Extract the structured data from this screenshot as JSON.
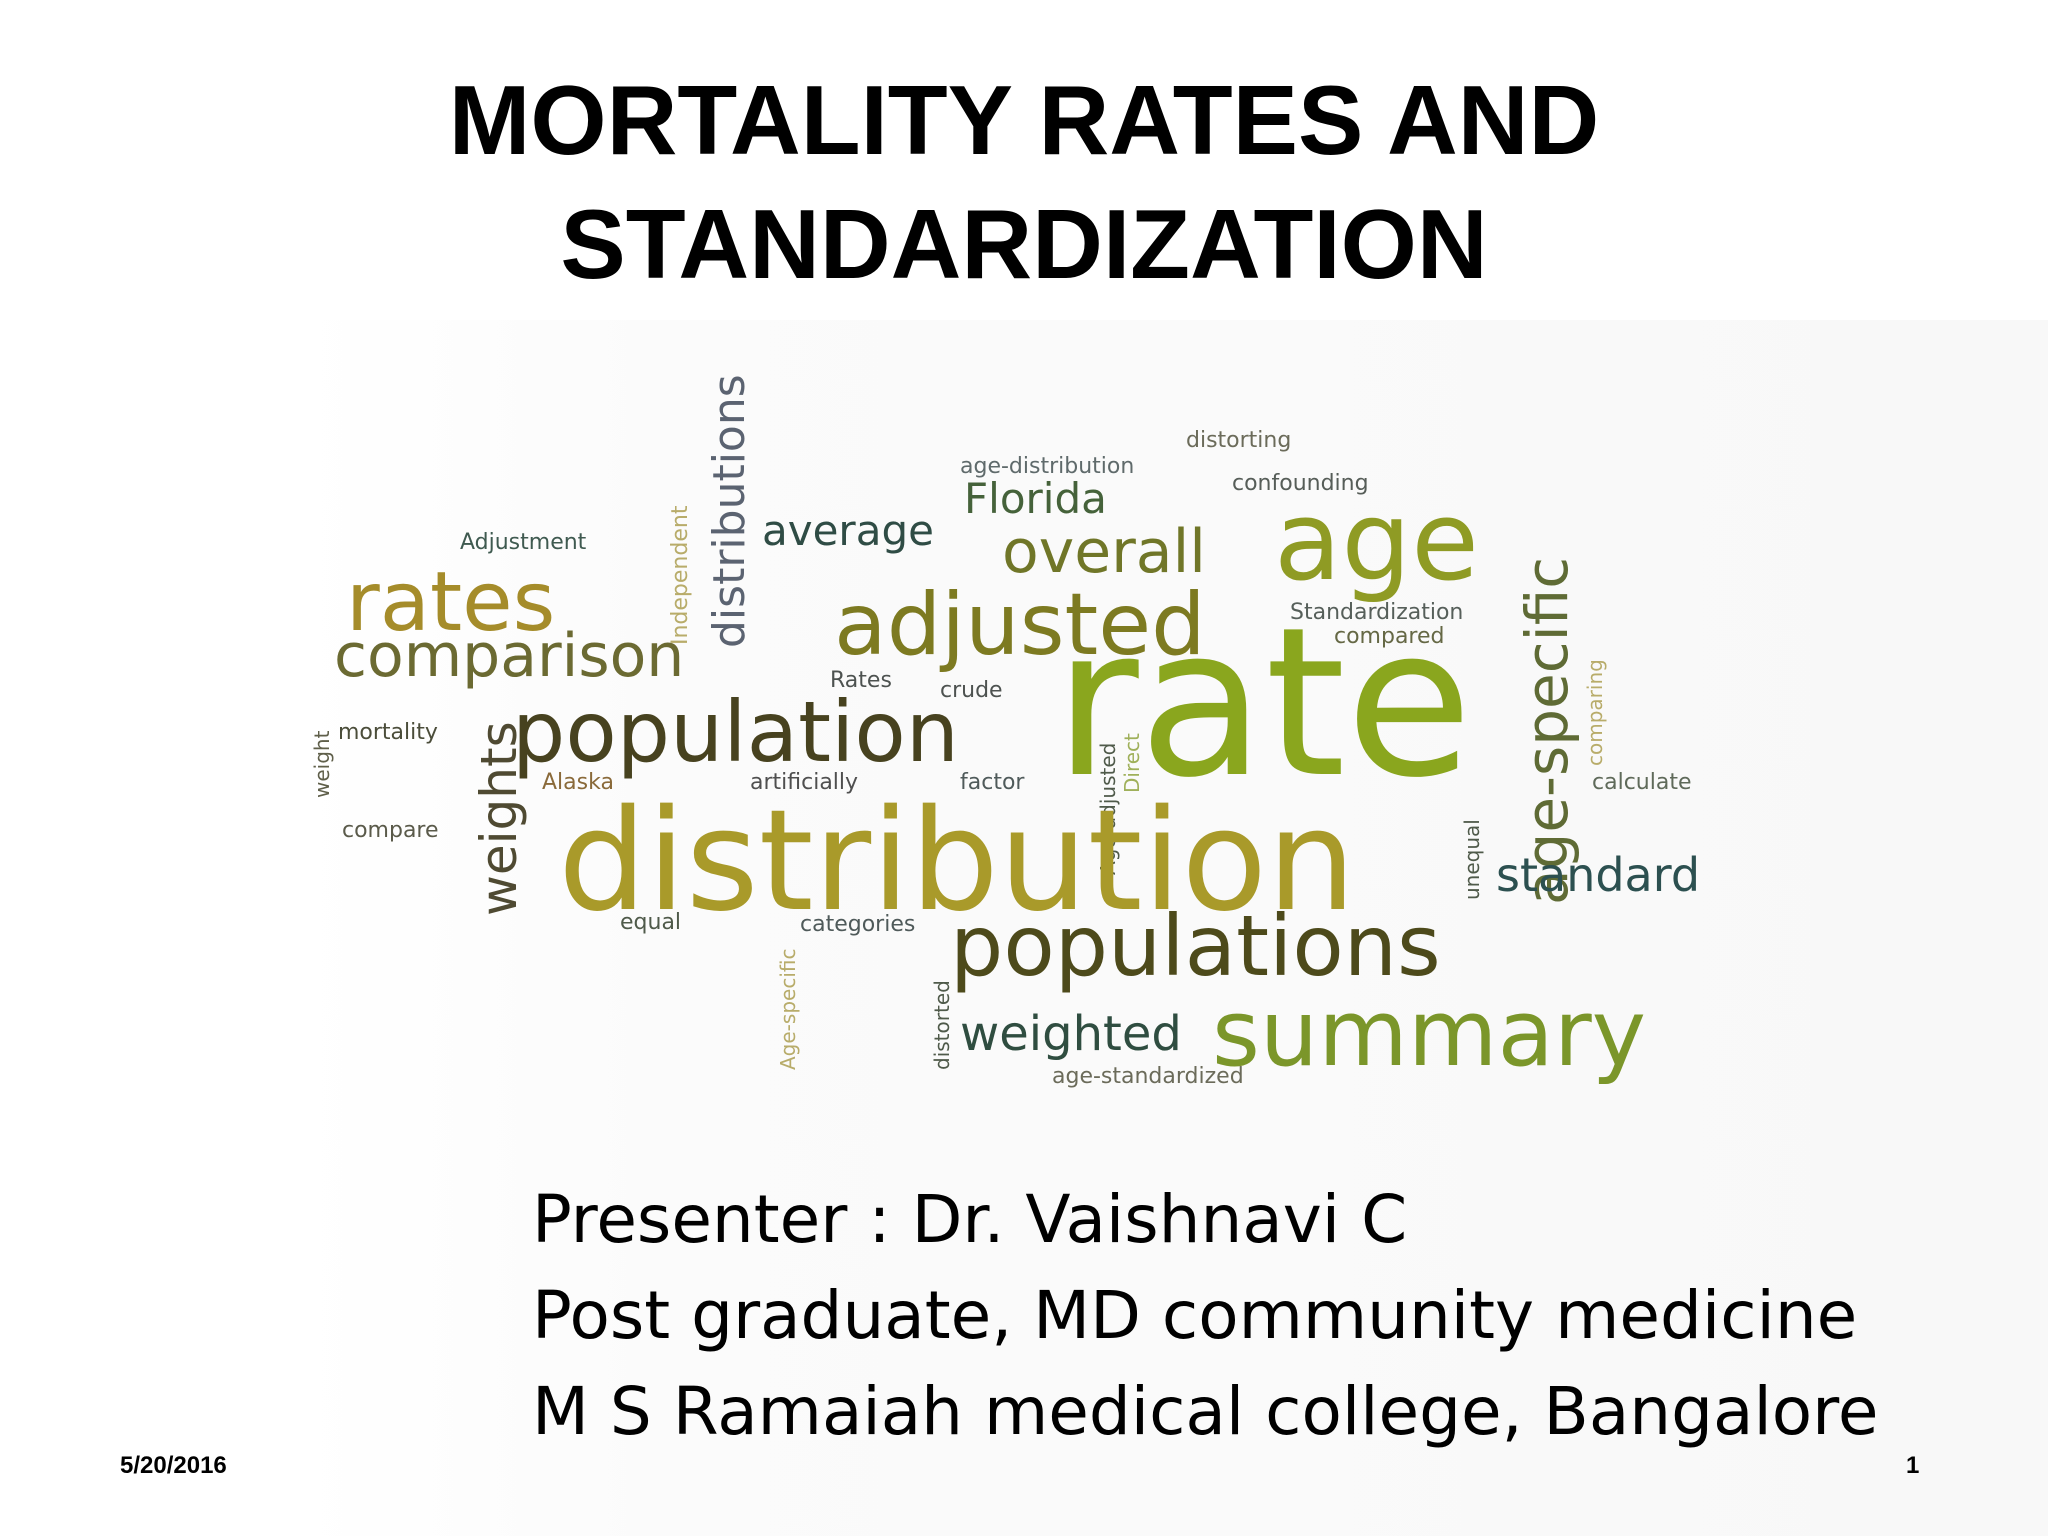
{
  "title": {
    "line1": "MORTALITY RATES AND",
    "line2": "STANDARDIZATION"
  },
  "word_cloud": {
    "words": [
      {
        "text": "rate",
        "color": "#8aa61e"
      },
      {
        "text": "distribution",
        "color": "#a99a2a"
      },
      {
        "text": "population",
        "color": "#47421f"
      },
      {
        "text": "age",
        "color": "#8f9b24"
      },
      {
        "text": "adjusted",
        "color": "#7d7a21"
      },
      {
        "text": "rates",
        "color": "#a58c2a"
      },
      {
        "text": "comparison",
        "color": "#6b6a32"
      },
      {
        "text": "overall",
        "color": "#707628"
      },
      {
        "text": "populations",
        "color": "#4d4a1b"
      },
      {
        "text": "summary",
        "color": "#7b962a"
      },
      {
        "text": "age-specific",
        "color": "#5f6b35"
      },
      {
        "text": "distributions",
        "color": "#5b6371"
      },
      {
        "text": "average",
        "color": "#2f4c45"
      },
      {
        "text": "Florida",
        "color": "#45623a"
      },
      {
        "text": "weights",
        "color": "#4f4a32"
      },
      {
        "text": "standard",
        "color": "#2c5050"
      },
      {
        "text": "weighted",
        "color": "#2f4d40"
      },
      {
        "text": "age-distribution",
        "color": "#5f6a6b"
      },
      {
        "text": "distorting",
        "color": "#6b6b5a"
      },
      {
        "text": "confounding",
        "color": "#565d58"
      },
      {
        "text": "Adjustment",
        "color": "#3f5a50"
      },
      {
        "text": "Independent",
        "color": "#b8ac6a"
      },
      {
        "text": "Standardization",
        "color": "#565f5a"
      },
      {
        "text": "compared",
        "color": "#656845"
      },
      {
        "text": "Rates",
        "color": "#4d5250"
      },
      {
        "text": "crude",
        "color": "#4d5250"
      },
      {
        "text": "mortality",
        "color": "#4b4d3a"
      },
      {
        "text": "weight",
        "color": "#5f5f4a"
      },
      {
        "text": "Alaska",
        "color": "#8a6a3a"
      },
      {
        "text": "artificially",
        "color": "#4f4f4f"
      },
      {
        "text": "factor",
        "color": "#4f5a5a"
      },
      {
        "text": "compare",
        "color": "#5a5a4a"
      },
      {
        "text": "calculate",
        "color": "#5f6a5a"
      },
      {
        "text": "comparing",
        "color": "#b8ac6a"
      },
      {
        "text": "Age-adjusted",
        "color": "#4f5a4a"
      },
      {
        "text": "Direct",
        "color": "#9fb05a"
      },
      {
        "text": "unequal",
        "color": "#4f5a4a"
      },
      {
        "text": "equal",
        "color": "#4f5a4a"
      },
      {
        "text": "categories",
        "color": "#4f5a5a"
      },
      {
        "text": "Age-specific",
        "color": "#b8ac6a"
      },
      {
        "text": "distorted",
        "color": "#4f5a4a"
      },
      {
        "text": "age-standardized",
        "color": "#6b6b5a"
      }
    ]
  },
  "presenter": {
    "line1": "Presenter : Dr. Vaishnavi C",
    "line2": "Post graduate, MD community medicine",
    "line3": "M S Ramaiah medical college, Bangalore"
  },
  "footer": {
    "date": "5/20/2016",
    "slide_number": "1"
  }
}
